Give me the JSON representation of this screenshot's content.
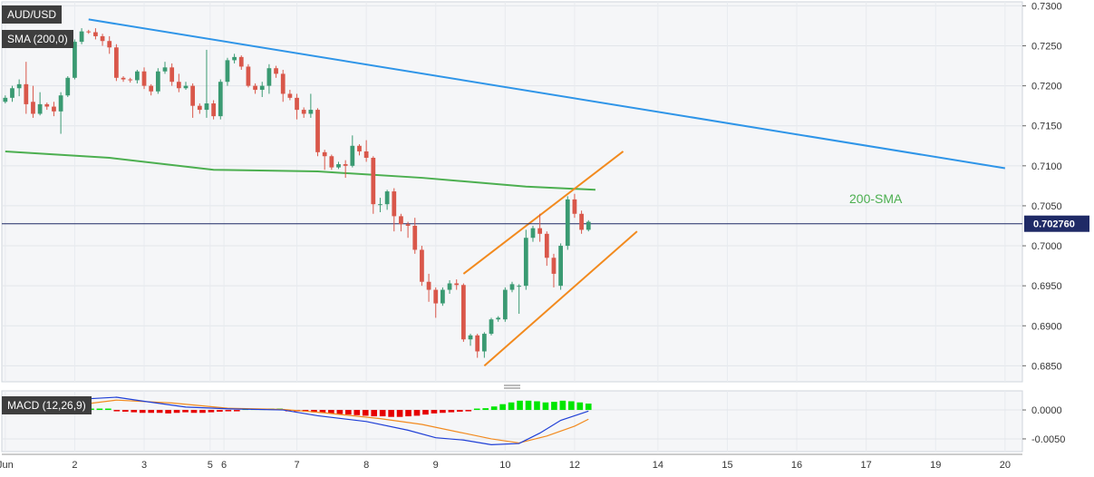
{
  "symbol_label": "AUD/USD",
  "sma_label": "SMA (200,0)",
  "macd_label": "MACD (12,26,9)",
  "sma_annotation": "200-SMA",
  "price_badge": "0.702760",
  "colors": {
    "bull": "#3a9a72",
    "bear": "#d9574a",
    "sma": "#4caf50",
    "trend": "#2f95e8",
    "channel": "#f28a1e",
    "macd": "#1f3fd6",
    "signal": "#f28a1e",
    "hist_pos": "#00e600",
    "hist_neg": "#e60000",
    "badge": "#1f2a66"
  },
  "chart_data": [
    {
      "type": "candlestick",
      "name": "AUD/USD",
      "x_tick_labels": [
        "Jun",
        "2",
        "3",
        "5",
        "6",
        "7",
        "8",
        "9",
        "10",
        "12",
        "14",
        "15",
        "16",
        "17",
        "19",
        "20"
      ],
      "x_tick_positions": [
        0,
        10,
        20,
        29.5,
        31.5,
        42,
        52,
        62,
        72,
        82,
        94,
        104,
        114,
        124,
        134,
        144
      ],
      "y_ticks": [
        0.685,
        0.69,
        0.695,
        0.7,
        0.705,
        0.71,
        0.715,
        0.72,
        0.725,
        0.73
      ],
      "ylim": [
        0.683,
        0.7305
      ],
      "xlim": [
        -0.5,
        146.5
      ],
      "current_price": 0.70276,
      "candles": [
        [
          0,
          0.718,
          0.7185,
          0.7178,
          0.7188
        ],
        [
          1,
          0.7185,
          0.7197,
          0.718,
          0.72
        ],
        [
          2,
          0.7197,
          0.7202,
          0.7187,
          0.7208
        ],
        [
          3,
          0.7202,
          0.7177,
          0.7165,
          0.723
        ],
        [
          4,
          0.718,
          0.7165,
          0.716,
          0.72
        ],
        [
          5,
          0.7165,
          0.7177,
          0.7163,
          0.7192
        ],
        [
          6,
          0.7177,
          0.7174,
          0.717,
          0.7179
        ],
        [
          7,
          0.7174,
          0.7168,
          0.7162,
          0.718
        ],
        [
          8,
          0.7168,
          0.7188,
          0.714,
          0.7192
        ],
        [
          9,
          0.7188,
          0.721,
          0.7186,
          0.7212
        ],
        [
          10,
          0.721,
          0.7255,
          0.7208,
          0.7258
        ],
        [
          11,
          0.7255,
          0.7268,
          0.7252,
          0.7272
        ],
        [
          12,
          0.7268,
          0.7267,
          0.7265,
          0.727
        ],
        [
          13,
          0.7267,
          0.7262,
          0.7258,
          0.7272
        ],
        [
          14,
          0.7262,
          0.7256,
          0.725,
          0.7265
        ],
        [
          15,
          0.7256,
          0.7248,
          0.724,
          0.7262
        ],
        [
          16,
          0.7248,
          0.721,
          0.7206,
          0.7252
        ],
        [
          17,
          0.721,
          0.7208,
          0.7205,
          0.7212
        ],
        [
          18,
          0.7208,
          0.7207,
          0.7204,
          0.721
        ],
        [
          19,
          0.7207,
          0.7218,
          0.7203,
          0.722
        ],
        [
          20,
          0.7218,
          0.72,
          0.7196,
          0.7223
        ],
        [
          21,
          0.72,
          0.7193,
          0.7188,
          0.7202
        ],
        [
          22,
          0.7193,
          0.7218,
          0.719,
          0.7222
        ],
        [
          23,
          0.7218,
          0.7223,
          0.7215,
          0.723
        ],
        [
          24,
          0.7223,
          0.7205,
          0.72,
          0.7228
        ],
        [
          25,
          0.7205,
          0.7197,
          0.7192,
          0.7215
        ],
        [
          26,
          0.7197,
          0.72,
          0.7195,
          0.7205
        ],
        [
          27,
          0.72,
          0.7175,
          0.716,
          0.7203
        ],
        [
          28,
          0.7175,
          0.717,
          0.7165,
          0.7178
        ],
        [
          29,
          0.717,
          0.7178,
          0.716,
          0.7245
        ],
        [
          30,
          0.7178,
          0.7162,
          0.7158,
          0.7182
        ],
        [
          31,
          0.7162,
          0.7205,
          0.7158,
          0.7208
        ],
        [
          32,
          0.7205,
          0.7232,
          0.72,
          0.7235
        ],
        [
          33,
          0.7232,
          0.7236,
          0.7228,
          0.724
        ],
        [
          34,
          0.7236,
          0.7224,
          0.722,
          0.7238
        ],
        [
          35,
          0.7224,
          0.72,
          0.7198,
          0.7227
        ],
        [
          36,
          0.72,
          0.7195,
          0.719,
          0.7203
        ],
        [
          37,
          0.7195,
          0.72,
          0.7186,
          0.7205
        ],
        [
          38,
          0.72,
          0.7222,
          0.719,
          0.7227
        ],
        [
          39,
          0.7222,
          0.7215,
          0.721,
          0.7225
        ],
        [
          40,
          0.7215,
          0.719,
          0.718,
          0.722
        ],
        [
          41,
          0.719,
          0.7185,
          0.7182,
          0.7195
        ],
        [
          42,
          0.7185,
          0.717,
          0.7158,
          0.719
        ],
        [
          43,
          0.717,
          0.7165,
          0.716,
          0.7173
        ],
        [
          44,
          0.7165,
          0.717,
          0.716,
          0.719
        ],
        [
          45,
          0.717,
          0.7117,
          0.7112,
          0.7172
        ],
        [
          46,
          0.7117,
          0.7112,
          0.7095,
          0.712
        ],
        [
          47,
          0.7112,
          0.7098,
          0.7095,
          0.7114
        ],
        [
          48,
          0.7098,
          0.7102,
          0.7096,
          0.7105
        ],
        [
          49,
          0.7102,
          0.71,
          0.7085,
          0.7107
        ],
        [
          50,
          0.71,
          0.7125,
          0.7098,
          0.7138
        ],
        [
          51,
          0.7125,
          0.7118,
          0.7113,
          0.7127
        ],
        [
          52,
          0.7118,
          0.711,
          0.7105,
          0.7132
        ],
        [
          53,
          0.711,
          0.7052,
          0.704,
          0.7112
        ],
        [
          54,
          0.7052,
          0.7052,
          0.7042,
          0.706
        ],
        [
          55,
          0.7052,
          0.7068,
          0.7045,
          0.707
        ],
        [
          56,
          0.7068,
          0.7037,
          0.7018,
          0.7072
        ],
        [
          57,
          0.7037,
          0.7027,
          0.7018,
          0.704
        ],
        [
          58,
          0.7027,
          0.7025,
          0.701,
          0.703
        ],
        [
          59,
          0.7025,
          0.6995,
          0.699,
          0.7035
        ],
        [
          60,
          0.6995,
          0.6955,
          0.695,
          0.7
        ],
        [
          61,
          0.6955,
          0.6945,
          0.693,
          0.6965
        ],
        [
          62,
          0.6945,
          0.6928,
          0.691,
          0.6948
        ],
        [
          63,
          0.6928,
          0.6945,
          0.6925,
          0.6948
        ],
        [
          64,
          0.6945,
          0.6953,
          0.694,
          0.6957
        ],
        [
          65,
          0.6953,
          0.6951,
          0.6945,
          0.6958
        ],
        [
          66,
          0.6951,
          0.6883,
          0.688,
          0.6953
        ],
        [
          67,
          0.6883,
          0.6888,
          0.6875,
          0.689
        ],
        [
          68,
          0.6888,
          0.6868,
          0.686,
          0.689
        ],
        [
          69,
          0.6868,
          0.689,
          0.686,
          0.6892
        ],
        [
          70,
          0.689,
          0.6908,
          0.6888,
          0.691
        ],
        [
          71,
          0.6908,
          0.691,
          0.6905,
          0.6912
        ],
        [
          72,
          0.6908,
          0.6945,
          0.6905,
          0.6948
        ],
        [
          73,
          0.6945,
          0.6952,
          0.6942,
          0.6955
        ],
        [
          74,
          0.695,
          0.695,
          0.6915,
          0.6952
        ],
        [
          75,
          0.695,
          0.701,
          0.6945,
          0.702
        ],
        [
          76,
          0.701,
          0.7022,
          0.7005,
          0.7025
        ],
        [
          77,
          0.7022,
          0.7015,
          0.7005,
          0.704
        ],
        [
          78,
          0.7015,
          0.6985,
          0.6975,
          0.7018
        ],
        [
          79,
          0.6985,
          0.6965,
          0.6948,
          0.699
        ],
        [
          80,
          0.695,
          0.7,
          0.6945,
          0.7003
        ],
        [
          81,
          0.7,
          0.7058,
          0.6995,
          0.7062
        ],
        [
          82,
          0.7058,
          0.704,
          0.7035,
          0.7065
        ],
        [
          83,
          0.704,
          0.702,
          0.7015,
          0.7044
        ],
        [
          84,
          0.702,
          0.703,
          0.7018,
          0.7032
        ]
      ],
      "sma200": [
        [
          0,
          0.7118
        ],
        [
          15,
          0.711
        ],
        [
          30,
          0.7095
        ],
        [
          45,
          0.7093
        ],
        [
          60,
          0.7085
        ],
        [
          75,
          0.7074
        ],
        [
          85,
          0.707
        ]
      ],
      "trendline_down": [
        [
          12,
          0.7283
        ],
        [
          144,
          0.7097
        ]
      ],
      "channel_upper": [
        [
          66,
          0.6965
        ],
        [
          89,
          0.7118
        ]
      ],
      "channel_lower": [
        [
          69,
          0.685
        ],
        [
          91,
          0.7018
        ]
      ]
    },
    {
      "type": "macd",
      "name": "MACD (12,26,9)",
      "y_ticks": [
        0.0,
        -0.005
      ],
      "y_tick_labels": [
        "0.0000",
        "-0.0050"
      ],
      "ylim": [
        -0.0072,
        0.0033
      ],
      "histogram": [
        -0.0003,
        -0.0002,
        -0.0001,
        0.0,
        0.0002,
        0.0004,
        0.0004,
        0.0004,
        0.0003,
        0.0003,
        0.0002,
        0.0001,
        0.0,
        -0.0002,
        -0.0003,
        -0.0004,
        -0.0005,
        -0.0005,
        -0.0005,
        -0.0006,
        -0.0005,
        -0.0004,
        -0.0005,
        -0.0005,
        -0.0004,
        -0.0003,
        -0.0002,
        -0.0001,
        0.0001,
        0.0001,
        0.0001,
        0.0,
        0.0,
        -0.0001,
        -0.0002,
        -0.0003,
        -0.0004,
        -0.0005,
        -0.0006,
        -0.0007,
        -0.0008,
        -0.0009,
        -0.001,
        -0.0011,
        -0.0011,
        -0.0012,
        -0.0012,
        -0.0011,
        -0.001,
        -0.0008,
        -0.0006,
        -0.0005,
        -0.0004,
        -0.0003,
        -0.0001,
        0.0,
        0.0003,
        0.0006,
        0.001,
        0.0013,
        0.0016,
        0.0016,
        0.0015,
        0.0013,
        0.0014,
        0.0016,
        0.0015,
        0.0013,
        0.0011
      ],
      "macd_line": [
        [
          0,
          0.0005
        ],
        [
          5,
          0.001
        ],
        [
          10,
          0.0018
        ],
        [
          16,
          0.0022
        ],
        [
          20,
          0.0015
        ],
        [
          26,
          0.0005
        ],
        [
          32,
          0.0002
        ],
        [
          40,
          0.0
        ],
        [
          45,
          -0.001
        ],
        [
          52,
          -0.002
        ],
        [
          58,
          -0.0035
        ],
        [
          62,
          -0.0048
        ],
        [
          66,
          -0.0052
        ],
        [
          70,
          -0.006
        ],
        [
          74,
          -0.0058
        ],
        [
          77,
          -0.004
        ],
        [
          80,
          -0.0018
        ],
        [
          84,
          -0.0002
        ]
      ],
      "signal_line": [
        [
          0,
          -0.0001
        ],
        [
          8,
          0.0005
        ],
        [
          16,
          0.0017
        ],
        [
          24,
          0.0012
        ],
        [
          32,
          0.0003
        ],
        [
          40,
          0.0001
        ],
        [
          46,
          -0.0005
        ],
        [
          54,
          -0.0015
        ],
        [
          60,
          -0.0025
        ],
        [
          66,
          -0.004
        ],
        [
          70,
          -0.005
        ],
        [
          74,
          -0.0057
        ],
        [
          78,
          -0.0045
        ],
        [
          82,
          -0.0028
        ],
        [
          84,
          -0.0016
        ]
      ]
    }
  ]
}
